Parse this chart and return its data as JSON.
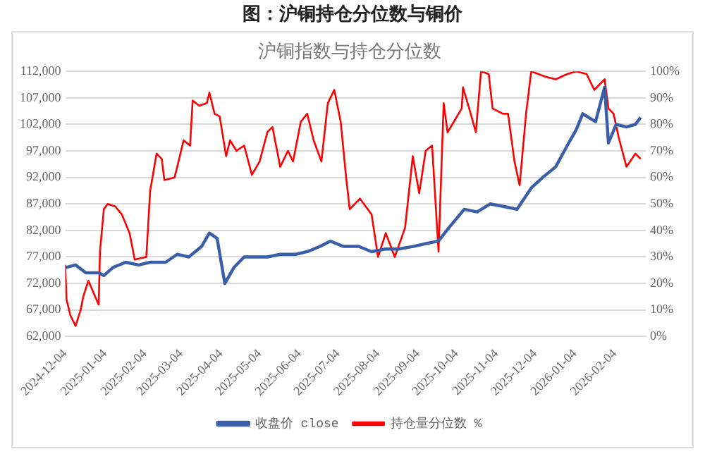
{
  "chart_data": {
    "type": "line",
    "title": "图：沪铜持仓分位数与铜价",
    "subtitle": "沪铜指数与持仓分位数",
    "xlim": [
      "2024-12-04",
      "2026-02-28"
    ],
    "xticks": [
      "2024-12-04",
      "2025-01-04",
      "2025-02-04",
      "2025-03-04",
      "2025-04-04",
      "2025-05-04",
      "2025-06-04",
      "2025-07-04",
      "2025-08-04",
      "2025-09-04",
      "2025-10-04",
      "2025-11-04",
      "2025-12-04",
      "2026-01-04",
      "2026-02-04"
    ],
    "ylim": [
      62000,
      112000
    ],
    "yticks": [
      {
        "value": 62000,
        "label": "62,000"
      },
      {
        "value": 67000,
        "label": "67,000"
      },
      {
        "value": 72000,
        "label": "72,000"
      },
      {
        "value": 77000,
        "label": "77,000"
      },
      {
        "value": 82000,
        "label": "82,000"
      },
      {
        "value": 87000,
        "label": "87,000"
      },
      {
        "value": 92000,
        "label": "92,000"
      },
      {
        "value": 97000,
        "label": "97,000"
      },
      {
        "value": 102000,
        "label": "102,000"
      },
      {
        "value": 107000,
        "label": "107,000"
      },
      {
        "value": 112000,
        "label": "112,000"
      }
    ],
    "y2lim": [
      0,
      100
    ],
    "y2ticks": [
      {
        "value": 0,
        "label": "0%"
      },
      {
        "value": 10,
        "label": "10%"
      },
      {
        "value": 20,
        "label": "20%"
      },
      {
        "value": 30,
        "label": "30%"
      },
      {
        "value": 40,
        "label": "40%"
      },
      {
        "value": 50,
        "label": "50%"
      },
      {
        "value": 60,
        "label": "60%"
      },
      {
        "value": 70,
        "label": "70%"
      },
      {
        "value": 80,
        "label": "80%"
      },
      {
        "value": 90,
        "label": "90%"
      },
      {
        "value": 100,
        "label": "100%"
      }
    ],
    "grid": "y",
    "legend": "bottom",
    "marker": "none",
    "line_style": "solid",
    "series": [
      {
        "name": "收盘价 close",
        "color": "#3a5fa8",
        "x": [
          "2024-12-04",
          "2024-12-12",
          "2024-12-20",
          "2024-12-30",
          "2025-01-03",
          "2025-01-10",
          "2025-01-20",
          "2025-01-30",
          "2025-02-08",
          "2025-02-20",
          "2025-03-01",
          "2025-03-10",
          "2025-03-20",
          "2025-03-26",
          "2025-04-01",
          "2025-04-07",
          "2025-04-14",
          "2025-04-22",
          "2025-05-01",
          "2025-05-10",
          "2025-05-20",
          "2025-06-01",
          "2025-06-10",
          "2025-06-20",
          "2025-06-28",
          "2025-07-08",
          "2025-07-20",
          "2025-07-30",
          "2025-08-10",
          "2025-08-20",
          "2025-09-01",
          "2025-09-10",
          "2025-09-20",
          "2025-09-28",
          "2025-10-10",
          "2025-10-20",
          "2025-10-30",
          "2025-11-10",
          "2025-11-20",
          "2025-12-01",
          "2025-12-10",
          "2025-12-20",
          "2025-12-29",
          "2026-01-05",
          "2026-01-10",
          "2026-01-20",
          "2026-01-27",
          "2026-01-30",
          "2026-02-05",
          "2026-02-13",
          "2026-02-20",
          "2026-02-24"
        ],
        "values": [
          75000,
          75500,
          74000,
          74000,
          73500,
          75000,
          76000,
          75500,
          76000,
          76000,
          77500,
          77000,
          79000,
          81500,
          80500,
          72000,
          75000,
          77000,
          77000,
          77000,
          77500,
          77500,
          78000,
          79000,
          80000,
          79000,
          79000,
          78000,
          78500,
          78500,
          79000,
          79500,
          80000,
          82500,
          86000,
          85500,
          87000,
          86500,
          86000,
          90000,
          92000,
          94000,
          98000,
          101000,
          104000,
          102500,
          109000,
          98500,
          102000,
          101500,
          102000,
          103300
        ]
      },
      {
        "name": "持仓量分位数 %",
        "color": "#ff0000",
        "axis": "y2",
        "x": [
          "2024-12-04",
          "2024-12-05",
          "2024-12-08",
          "2024-12-12",
          "2024-12-16",
          "2024-12-18",
          "2024-12-22",
          "2024-12-30",
          "2024-12-31",
          "2025-01-03",
          "2025-01-06",
          "2025-01-12",
          "2025-01-17",
          "2025-01-23",
          "2025-01-27",
          "2025-02-05",
          "2025-02-08",
          "2025-02-13",
          "2025-02-17",
          "2025-02-19",
          "2025-02-27",
          "2025-03-06",
          "2025-03-11",
          "2025-03-13",
          "2025-03-18",
          "2025-03-24",
          "2025-03-26",
          "2025-03-30",
          "2025-04-03",
          "2025-04-08",
          "2025-04-11",
          "2025-04-16",
          "2025-04-22",
          "2025-04-28",
          "2025-05-04",
          "2025-05-10",
          "2025-05-14",
          "2025-05-20",
          "2025-05-26",
          "2025-05-30",
          "2025-06-05",
          "2025-06-10",
          "2025-06-15",
          "2025-06-21",
          "2025-06-26",
          "2025-07-01",
          "2025-07-06",
          "2025-07-10",
          "2025-07-13",
          "2025-07-21",
          "2025-07-30",
          "2025-08-04",
          "2025-08-10",
          "2025-08-17",
          "2025-08-25",
          "2025-08-31",
          "2025-09-05",
          "2025-09-10",
          "2025-09-15",
          "2025-09-20",
          "2025-09-24",
          "2025-09-27",
          "2025-10-08",
          "2025-10-09",
          "2025-10-15",
          "2025-10-19",
          "2025-10-23",
          "2025-10-29",
          "2025-11-01",
          "2025-11-09",
          "2025-11-13",
          "2025-11-18",
          "2025-11-22",
          "2025-11-27",
          "2025-12-01",
          "2025-12-12",
          "2025-12-20",
          "2025-12-29",
          "2026-01-05",
          "2026-01-13",
          "2026-01-19",
          "2026-01-27",
          "2026-01-30",
          "2026-02-03",
          "2026-02-07",
          "2026-02-13",
          "2026-02-20",
          "2026-02-24"
        ],
        "values": [
          27,
          14,
          8,
          4,
          10,
          15,
          21,
          12,
          32,
          48,
          50,
          49,
          46,
          39,
          29,
          30,
          55,
          69,
          67,
          59,
          60,
          74,
          72,
          89,
          87,
          88,
          92,
          84,
          83,
          68,
          74,
          70,
          72,
          61,
          66,
          77,
          79,
          64,
          70,
          66,
          81,
          84,
          74,
          66,
          88,
          93,
          81,
          61,
          48,
          52,
          46,
          30,
          39,
          30,
          41,
          68,
          54,
          70,
          72,
          32,
          88,
          77,
          86,
          94,
          84,
          77,
          100,
          99,
          86,
          84,
          84,
          66,
          57,
          84,
          100,
          98,
          97,
          99,
          100,
          99,
          93,
          97,
          86,
          84,
          75,
          64,
          69,
          67
        ]
      }
    ]
  }
}
